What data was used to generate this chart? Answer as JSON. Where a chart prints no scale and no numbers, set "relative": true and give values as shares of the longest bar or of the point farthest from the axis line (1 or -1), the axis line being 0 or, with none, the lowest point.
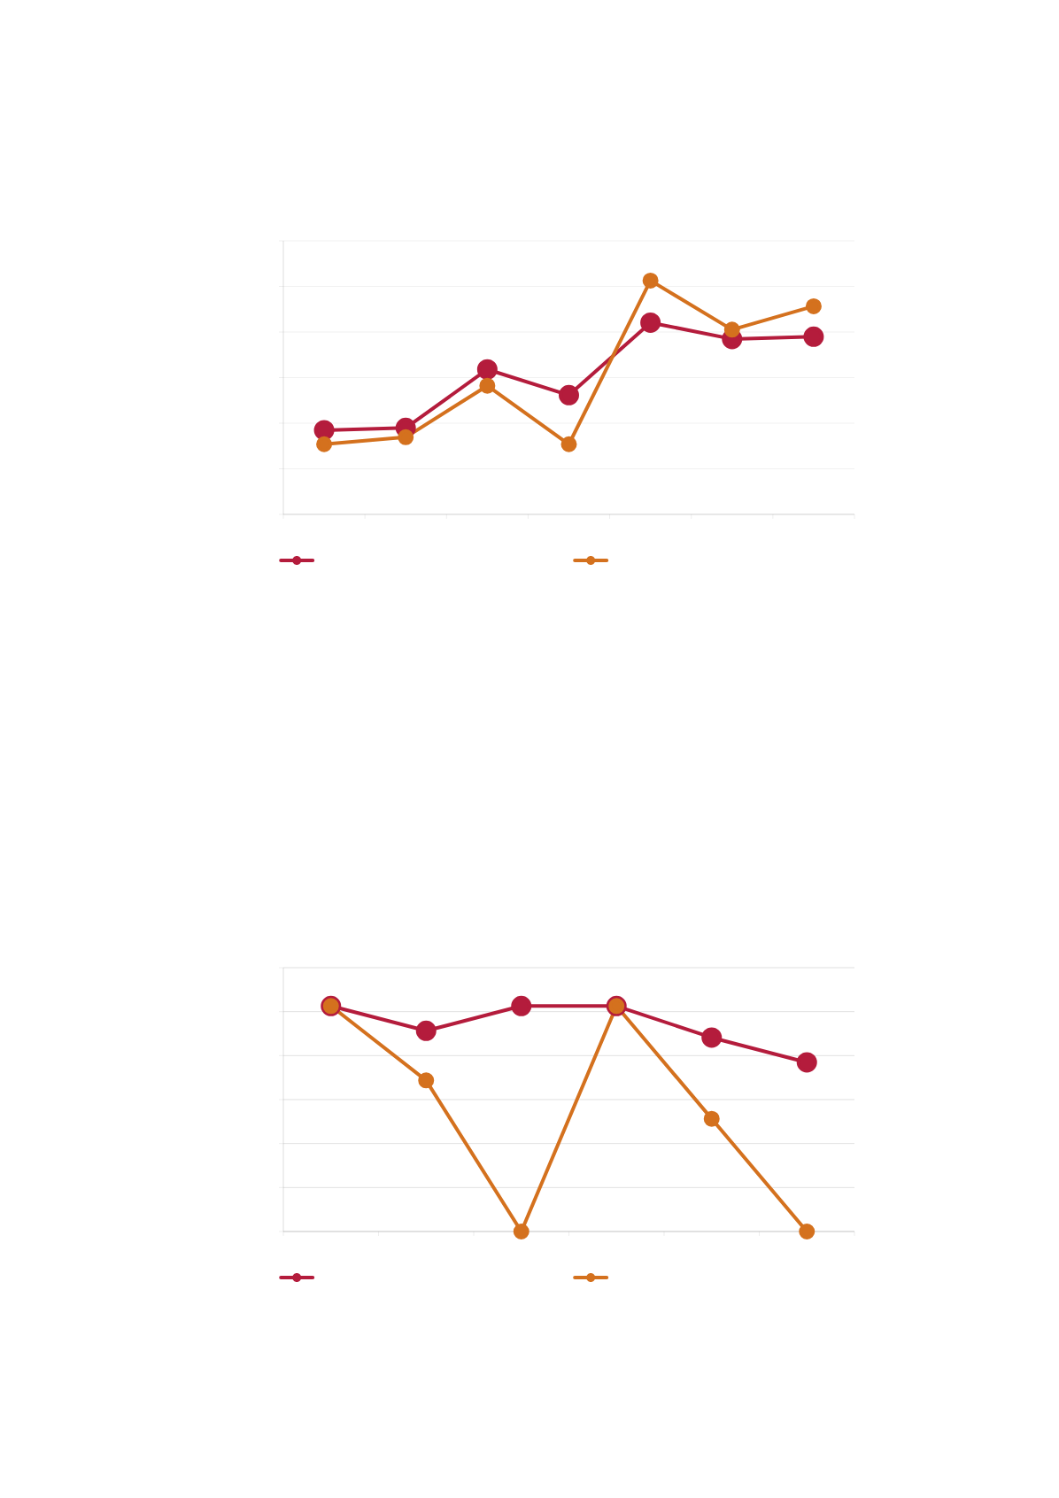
{
  "chart_data": [
    {
      "type": "line",
      "relative": true,
      "categories": [
        null,
        null,
        null,
        null,
        null,
        null,
        null
      ],
      "grid": "y",
      "marker": "circle",
      "series": [
        {
          "color": "#b41c3c",
          "values": [
            0.36,
            0.37,
            0.62,
            0.51,
            0.82,
            0.75,
            0.76
          ]
        },
        {
          "color": "#d4711e",
          "values": [
            0.3,
            0.33,
            0.55,
            0.3,
            1,
            0.79,
            0.89
          ]
        }
      ]
    },
    {
      "type": "line",
      "relative": true,
      "categories": [
        null,
        null,
        null,
        null,
        null,
        null
      ],
      "grid": "y",
      "marker": "circle",
      "series": [
        {
          "color": "#b41c3c",
          "values": [
            1,
            0.89,
            1,
            1,
            0.86,
            0.75
          ]
        },
        {
          "color": "#d4711e",
          "values": [
            1,
            0.67,
            0,
            1,
            0.5,
            0
          ]
        }
      ]
    }
  ]
}
